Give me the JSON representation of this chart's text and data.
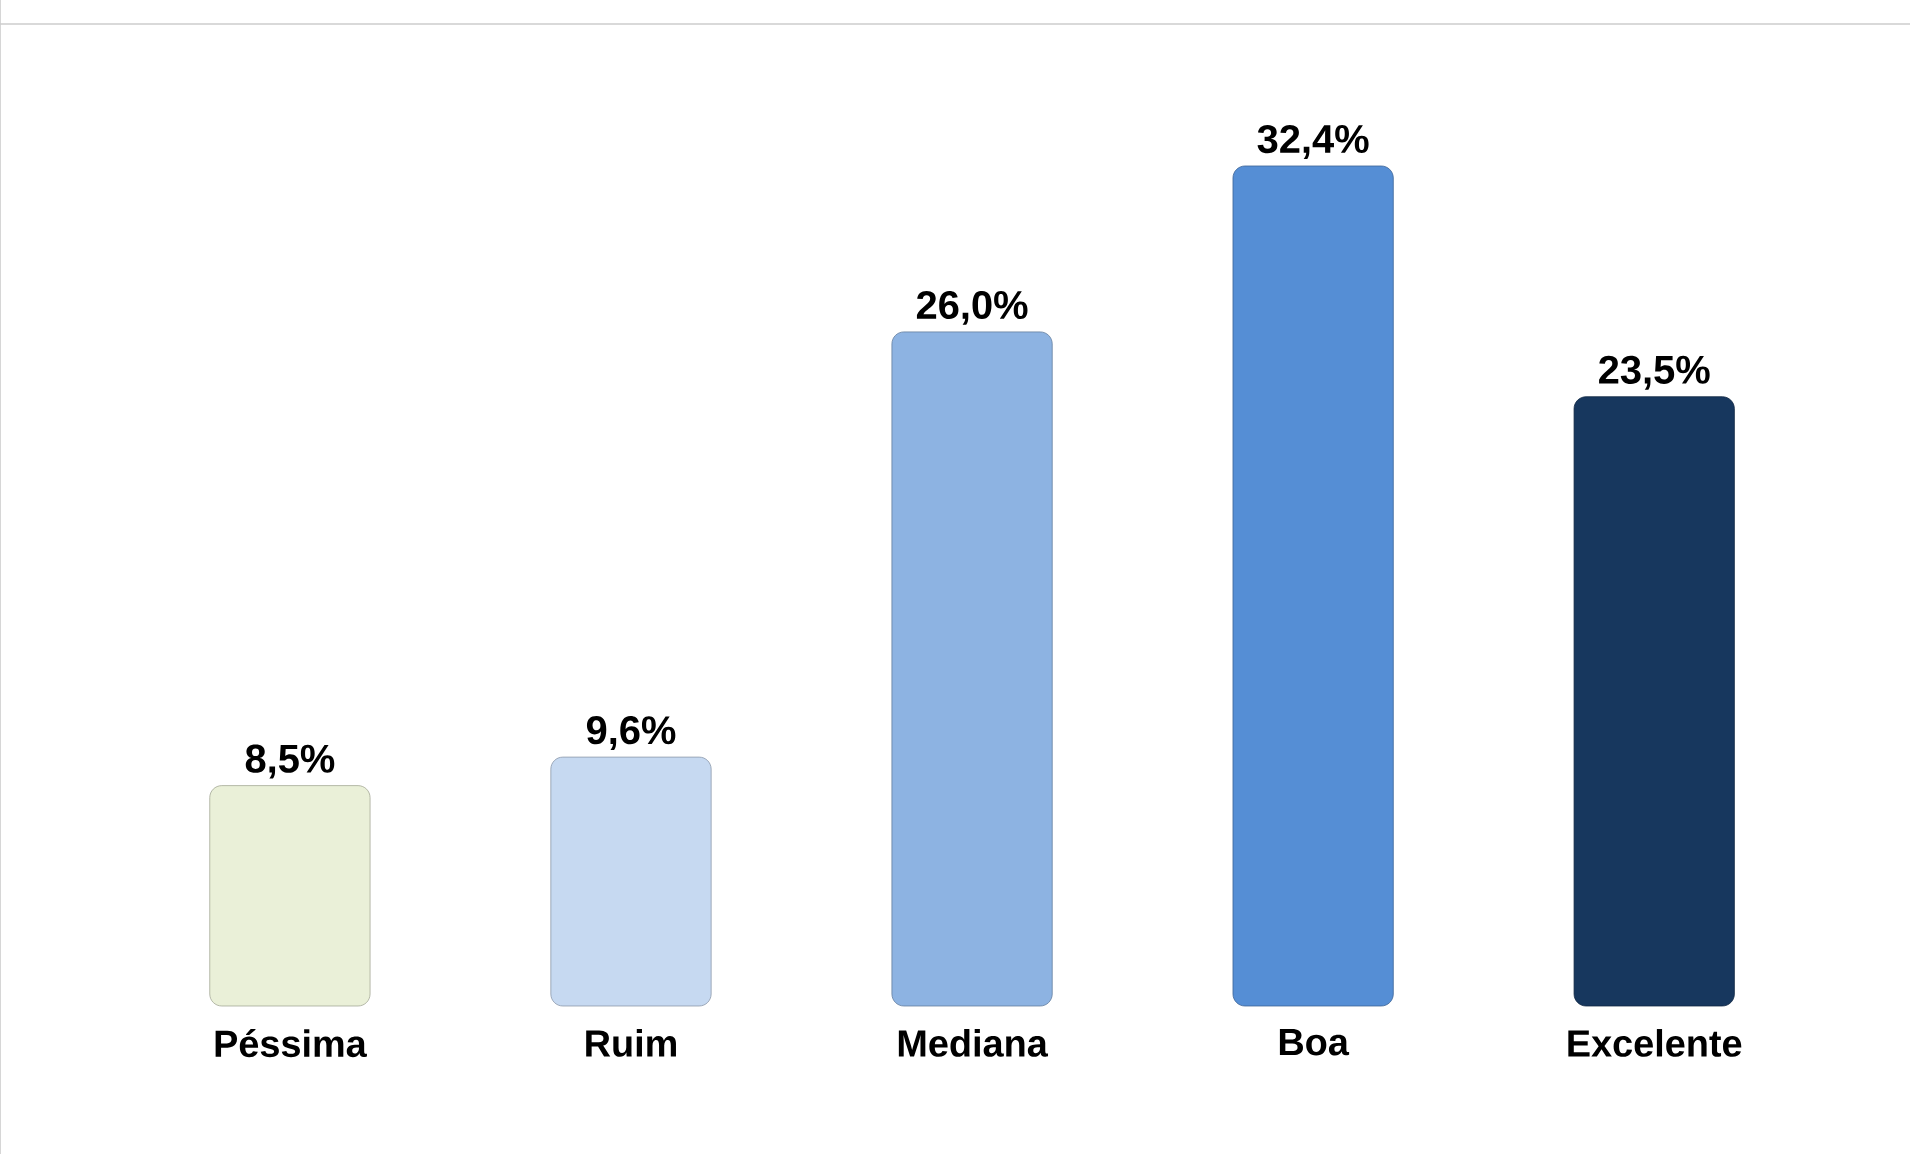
{
  "chart_data": {
    "type": "bar",
    "categories": [
      "Péssima",
      "Ruim",
      "Mediana",
      "Boa",
      "Excelente"
    ],
    "values": [
      8.5,
      9.6,
      26.0,
      32.4,
      23.5
    ],
    "value_labels": [
      "8,5%",
      "9,6%",
      "26,0%",
      "32,4%",
      "23,5%"
    ],
    "colors": [
      "#eaf0d8",
      "#c6d9f1",
      "#8db3e2",
      "#558ed5",
      "#17375e"
    ],
    "tick_labels": "x"
  }
}
